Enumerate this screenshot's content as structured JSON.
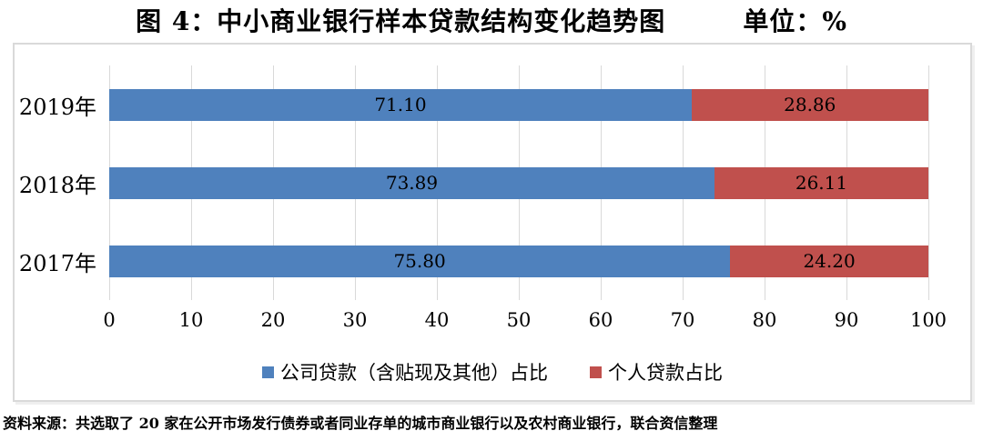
{
  "title": {
    "text": "图 4：中小商业银行样本贷款结构变化趋势图",
    "unit": "单位：%"
  },
  "chart_data": {
    "type": "bar",
    "orientation": "horizontal",
    "stacked": true,
    "title": "图 4：中小商业银行样本贷款结构变化趋势图",
    "unit": "%",
    "categories": [
      "2019年",
      "2018年",
      "2017年"
    ],
    "series": [
      {
        "name": "公司贷款（含贴现及其他）占比",
        "color": "#4F81BD",
        "values": [
          71.1,
          73.89,
          75.8
        ]
      },
      {
        "name": "个人贷款占比",
        "color": "#C0504D",
        "values": [
          28.86,
          26.11,
          24.2
        ]
      }
    ],
    "xlim": [
      0,
      100
    ],
    "xticks": [
      0,
      10,
      20,
      30,
      40,
      50,
      60,
      70,
      80,
      90,
      100
    ],
    "grid": "vertical",
    "gridline_color": "#d9d9d9",
    "legend_position": "bottom",
    "value_labels": "center",
    "value_label_decimals": 2
  },
  "footer": {
    "source": "资料来源：共选取了 20 家在公开市场发行债券或者同业存单的城市商业银行以及农村商业银行，联合资信整理"
  }
}
